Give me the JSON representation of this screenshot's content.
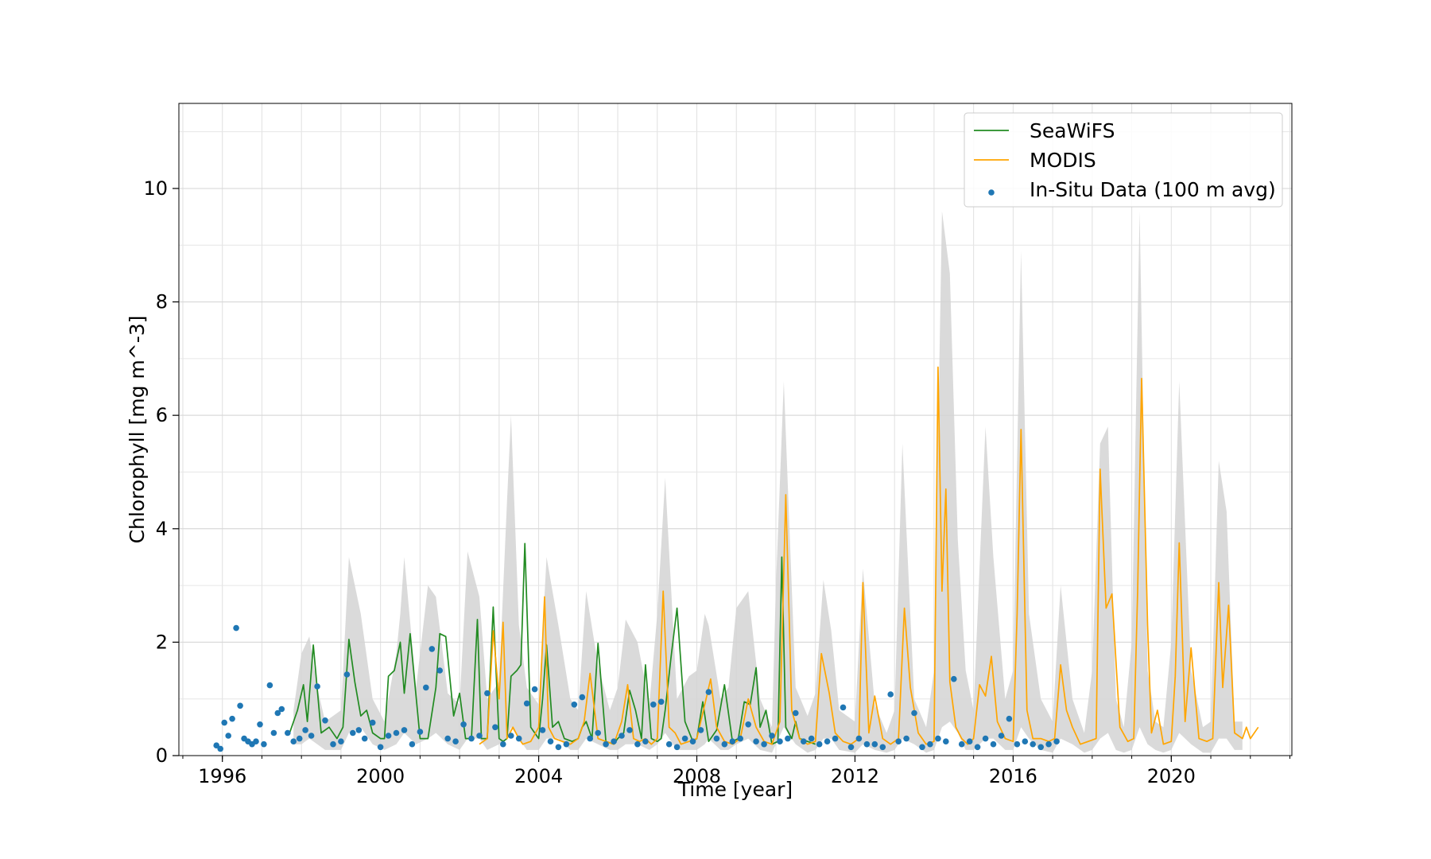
{
  "chart_data": {
    "type": "line",
    "title": "",
    "xlabel": "Time [year]",
    "ylabel": "Chlorophyll [mg m^-3]",
    "xlim": [
      1994.9,
      2023.05
    ],
    "ylim": [
      0,
      11.5
    ],
    "x_ticks": [
      1996,
      2000,
      2004,
      2008,
      2012,
      2016,
      2020
    ],
    "y_ticks": [
      0,
      2,
      4,
      6,
      8,
      10
    ],
    "x_tick_labels": [
      "1996",
      "2000",
      "2004",
      "2008",
      "2012",
      "2016",
      "2020"
    ],
    "y_tick_labels": [
      "0",
      "2",
      "4",
      "6",
      "8",
      "10"
    ],
    "grid": true,
    "legend": {
      "placement": "top-right"
    },
    "colors": {
      "seawifs": "#228b22",
      "modis": "#ffa500",
      "insitu": "#1f77b4",
      "band": "#d3d3d3"
    },
    "band": {
      "name": "",
      "x": [
        1997.8,
        1998.0,
        1998.2,
        1998.4,
        1998.6,
        1999.0,
        1999.2,
        1999.5,
        1999.8,
        2000.1,
        2000.4,
        2000.5,
        2000.6,
        2000.9,
        2001.2,
        2001.4,
        2001.7,
        2002.0,
        2002.2,
        2002.5,
        2002.7,
        2003.0,
        2003.2,
        2003.3,
        2003.5,
        2003.7,
        2004.0,
        2004.2,
        2004.5,
        2004.8,
        2005.0,
        2005.2,
        2005.5,
        2005.8,
        2006.0,
        2006.2,
        2006.5,
        2006.8,
        2007.0,
        2007.2,
        2007.5,
        2007.8,
        2008.0,
        2008.2,
        2008.3,
        2008.6,
        2008.8,
        2009.0,
        2009.3,
        2009.6,
        2009.9,
        2010.0,
        2010.2,
        2010.5,
        2010.8,
        2011.0,
        2011.2,
        2011.4,
        2011.6,
        2012.0,
        2012.2,
        2012.5,
        2012.8,
        2013.0,
        2013.2,
        2013.5,
        2013.8,
        2014.0,
        2014.2,
        2014.4,
        2014.6,
        2014.8,
        2015.0,
        2015.3,
        2015.5,
        2015.8,
        2016.0,
        2016.2,
        2016.4,
        2016.7,
        2017.0,
        2017.2,
        2017.5,
        2017.8,
        2018.0,
        2018.2,
        2018.4,
        2018.6,
        2018.8,
        2019.0,
        2019.2,
        2019.4,
        2019.6,
        2019.8,
        2020.0,
        2020.2,
        2020.5,
        2020.8,
        2021.0,
        2021.2,
        2021.4,
        2021.6,
        2021.8
      ],
      "upper": [
        0.8,
        1.8,
        2.1,
        1.2,
        0.6,
        0.8,
        3.5,
        2.5,
        1.0,
        0.6,
        1.8,
        2.5,
        3.5,
        1.2,
        3.0,
        2.8,
        1.1,
        0.9,
        3.6,
        2.8,
        1.0,
        1.3,
        4.5,
        6.0,
        2.3,
        1.2,
        0.9,
        3.5,
        2.3,
        1.0,
        0.8,
        2.9,
        1.6,
        0.8,
        1.2,
        2.4,
        2.0,
        0.9,
        2.5,
        4.9,
        1.0,
        1.4,
        1.5,
        2.5,
        2.3,
        1.0,
        1.2,
        2.6,
        2.9,
        1.0,
        0.5,
        3.0,
        6.6,
        1.2,
        0.7,
        1.1,
        3.1,
        2.2,
        0.8,
        0.6,
        3.3,
        0.9,
        0.4,
        0.8,
        5.5,
        1.0,
        0.5,
        1.5,
        9.6,
        8.5,
        3.8,
        1.5,
        0.8,
        5.8,
        3.5,
        1.0,
        1.5,
        8.9,
        2.5,
        1.0,
        0.6,
        3.0,
        1.0,
        0.4,
        1.5,
        5.5,
        5.8,
        1.0,
        0.5,
        2.0,
        9.6,
        1.5,
        0.6,
        0.5,
        2.0,
        6.6,
        1.5,
        0.5,
        0.6,
        5.2,
        4.3,
        0.6,
        0.6
      ],
      "lower": [
        0.2,
        0.2,
        0.3,
        0.2,
        0.1,
        0.1,
        0.4,
        0.5,
        0.2,
        0.1,
        0.2,
        0.3,
        0.4,
        0.2,
        0.3,
        0.4,
        0.2,
        0.1,
        0.3,
        0.3,
        0.1,
        0.2,
        0.3,
        0.5,
        0.3,
        0.1,
        0.1,
        0.3,
        0.3,
        0.1,
        0.1,
        0.3,
        0.2,
        0.1,
        0.1,
        0.2,
        0.2,
        0.1,
        0.2,
        0.4,
        0.1,
        0.1,
        0.1,
        0.2,
        0.3,
        0.1,
        0.1,
        0.2,
        0.3,
        0.1,
        0.05,
        0.2,
        0.5,
        0.2,
        0.05,
        0.1,
        0.3,
        0.3,
        0.1,
        0.05,
        0.2,
        0.1,
        0.05,
        0.1,
        0.3,
        0.2,
        0.05,
        0.1,
        0.5,
        0.6,
        0.4,
        0.1,
        0.1,
        0.3,
        0.3,
        0.1,
        0.1,
        0.5,
        0.3,
        0.1,
        0.05,
        0.3,
        0.2,
        0.05,
        0.1,
        0.3,
        0.4,
        0.1,
        0.05,
        0.1,
        0.5,
        0.2,
        0.1,
        0.05,
        0.1,
        0.4,
        0.2,
        0.05,
        0.05,
        0.3,
        0.3,
        0.1,
        0.1
      ]
    },
    "series": [
      {
        "name": "SeaWiFS",
        "type": "line",
        "x": [
          1997.7,
          1997.9,
          1998.05,
          1998.15,
          1998.3,
          1998.5,
          1998.7,
          1998.9,
          1999.05,
          1999.2,
          1999.35,
          1999.5,
          1999.65,
          1999.8,
          2000.0,
          2000.1,
          2000.2,
          2000.35,
          2000.5,
          2000.6,
          2000.75,
          2001.0,
          2001.1,
          2001.2,
          2001.4,
          2001.5,
          2001.65,
          2001.85,
          2002.0,
          2002.15,
          2002.3,
          2002.45,
          2002.55,
          2002.7,
          2002.85,
          2003.0,
          2003.1,
          2003.2,
          2003.3,
          2003.45,
          2003.55,
          2003.65,
          2003.8,
          2004.0,
          2004.1,
          2004.2,
          2004.35,
          2004.5,
          2004.65,
          2004.85,
          2005.0,
          2005.1,
          2005.2,
          2005.35,
          2005.5,
          2005.7,
          2005.9,
          2006.0,
          2006.15,
          2006.3,
          2006.45,
          2006.6,
          2006.7,
          2006.85,
          2007.0,
          2007.1,
          2007.2,
          2007.35,
          2007.5,
          2007.7,
          2007.9,
          2008.0,
          2008.15,
          2008.3,
          2008.5,
          2008.7,
          2008.9,
          2009.05,
          2009.2,
          2009.35,
          2009.5,
          2009.6,
          2009.75,
          2009.9,
          2010.05,
          2010.15,
          2010.25,
          2010.4,
          2010.5,
          2010.6,
          2010.8,
          2011.0
        ],
        "y": [
          0.4,
          0.8,
          1.25,
          0.6,
          1.95,
          0.4,
          0.5,
          0.3,
          0.5,
          2.05,
          1.3,
          0.7,
          0.8,
          0.4,
          0.3,
          0.3,
          1.4,
          1.5,
          2.0,
          1.1,
          2.15,
          0.3,
          0.3,
          0.3,
          1.2,
          2.15,
          2.1,
          0.7,
          1.1,
          0.3,
          0.3,
          2.4,
          0.3,
          0.3,
          2.62,
          0.3,
          0.25,
          0.3,
          1.4,
          1.5,
          1.6,
          3.74,
          0.5,
          0.3,
          1.0,
          1.95,
          0.5,
          0.6,
          0.3,
          0.25,
          0.3,
          0.5,
          0.6,
          0.3,
          1.98,
          0.25,
          0.2,
          0.3,
          0.4,
          1.15,
          0.8,
          0.3,
          1.6,
          0.3,
          0.25,
          0.3,
          0.8,
          1.75,
          2.6,
          0.6,
          0.25,
          0.3,
          0.95,
          0.25,
          0.45,
          1.25,
          0.25,
          0.3,
          0.95,
          0.9,
          1.55,
          0.5,
          0.8,
          0.2,
          0.25,
          3.5,
          0.5,
          0.3,
          0.6,
          0.3,
          0.25,
          0.2
        ]
      },
      {
        "name": "MODIS",
        "type": "line",
        "x": [
          2002.5,
          2002.7,
          2002.85,
          2003.0,
          2003.1,
          2003.2,
          2003.35,
          2003.5,
          2003.6,
          2003.8,
          2004.0,
          2004.15,
          2004.25,
          2004.4,
          2004.6,
          2004.8,
          2005.0,
          2005.15,
          2005.3,
          2005.5,
          2005.7,
          2005.9,
          2006.1,
          2006.25,
          2006.4,
          2006.55,
          2006.7,
          2006.85,
          2007.0,
          2007.15,
          2007.3,
          2007.45,
          2007.6,
          2007.8,
          2008.0,
          2008.2,
          2008.35,
          2008.5,
          2008.7,
          2008.9,
          2009.1,
          2009.3,
          2009.5,
          2009.7,
          2009.9,
          2010.1,
          2010.25,
          2010.4,
          2010.6,
          2010.8,
          2011.0,
          2011.15,
          2011.35,
          2011.5,
          2011.7,
          2011.9,
          2012.1,
          2012.2,
          2012.35,
          2012.5,
          2012.7,
          2012.9,
          2013.1,
          2013.25,
          2013.4,
          2013.6,
          2013.8,
          2014.0,
          2014.1,
          2014.2,
          2014.3,
          2014.4,
          2014.55,
          2014.7,
          2014.85,
          2015.0,
          2015.15,
          2015.3,
          2015.45,
          2015.6,
          2015.8,
          2016.0,
          2016.1,
          2016.2,
          2016.35,
          2016.5,
          2016.7,
          2016.9,
          2017.05,
          2017.2,
          2017.35,
          2017.5,
          2017.7,
          2017.9,
          2018.1,
          2018.2,
          2018.35,
          2018.5,
          2018.7,
          2018.9,
          2019.05,
          2019.15,
          2019.25,
          2019.4,
          2019.5,
          2019.65,
          2019.8,
          2020.0,
          2020.1,
          2020.2,
          2020.35,
          2020.5,
          2020.7,
          2020.9,
          2021.05,
          2021.2,
          2021.3,
          2021.45,
          2021.6,
          2021.8,
          2021.9,
          2022.0,
          2022.2
        ],
        "y": [
          0.2,
          0.3,
          2.2,
          1.0,
          2.35,
          0.3,
          0.5,
          0.3,
          0.2,
          0.25,
          0.5,
          2.8,
          0.5,
          0.3,
          0.25,
          0.2,
          0.3,
          0.6,
          1.45,
          0.3,
          0.25,
          0.2,
          0.6,
          1.25,
          0.3,
          0.25,
          0.3,
          0.2,
          0.3,
          2.9,
          0.5,
          0.4,
          0.2,
          0.25,
          0.3,
          0.9,
          1.35,
          0.5,
          0.25,
          0.2,
          0.3,
          1.0,
          0.5,
          0.25,
          0.2,
          0.6,
          4.6,
          0.8,
          0.3,
          0.2,
          0.25,
          1.8,
          1.1,
          0.4,
          0.25,
          0.2,
          0.3,
          3.05,
          0.4,
          1.05,
          0.3,
          0.2,
          0.3,
          2.6,
          1.2,
          0.4,
          0.2,
          0.25,
          6.85,
          2.9,
          4.7,
          1.3,
          0.5,
          0.3,
          0.2,
          0.3,
          1.25,
          1.05,
          1.75,
          0.6,
          0.3,
          0.25,
          2.5,
          5.75,
          0.8,
          0.3,
          0.3,
          0.25,
          0.3,
          1.6,
          0.8,
          0.5,
          0.2,
          0.25,
          0.3,
          5.05,
          2.6,
          2.85,
          0.5,
          0.25,
          0.3,
          2.9,
          6.65,
          2.3,
          0.4,
          0.8,
          0.2,
          0.25,
          1.4,
          3.75,
          0.6,
          1.9,
          0.3,
          0.25,
          0.3,
          3.05,
          1.2,
          2.65,
          0.4,
          0.3,
          0.5,
          0.3,
          0.5
        ]
      },
      {
        "name": "In-Situ Data (100 m avg)",
        "type": "scatter",
        "x": [
          1995.85,
          1995.95,
          1996.05,
          1996.15,
          1996.25,
          1996.35,
          1996.45,
          1996.55,
          1996.65,
          1996.75,
          1996.85,
          1996.95,
          1997.05,
          1997.2,
          1997.3,
          1997.4,
          1997.5,
          1997.65,
          1997.8,
          1997.95,
          1998.1,
          1998.25,
          1998.4,
          1998.6,
          1998.8,
          1999.0,
          1999.15,
          1999.3,
          1999.45,
          1999.6,
          1999.8,
          2000.0,
          2000.2,
          2000.4,
          2000.6,
          2000.8,
          2001.0,
          2001.15,
          2001.3,
          2001.5,
          2001.7,
          2001.9,
          2002.1,
          2002.3,
          2002.5,
          2002.7,
          2002.9,
          2003.1,
          2003.3,
          2003.5,
          2003.7,
          2003.9,
          2004.1,
          2004.3,
          2004.5,
          2004.7,
          2004.9,
          2005.1,
          2005.3,
          2005.5,
          2005.7,
          2005.9,
          2006.1,
          2006.3,
          2006.5,
          2006.7,
          2006.9,
          2007.1,
          2007.3,
          2007.5,
          2007.7,
          2007.9,
          2008.1,
          2008.3,
          2008.5,
          2008.7,
          2008.9,
          2009.1,
          2009.3,
          2009.5,
          2009.7,
          2009.9,
          2010.1,
          2010.3,
          2010.5,
          2010.7,
          2010.9,
          2011.1,
          2011.3,
          2011.5,
          2011.7,
          2011.9,
          2012.1,
          2012.3,
          2012.5,
          2012.7,
          2012.9,
          2013.1,
          2013.3,
          2013.5,
          2013.7,
          2013.9,
          2014.1,
          2014.3,
          2014.5,
          2014.7,
          2014.9,
          2015.1,
          2015.3,
          2015.5,
          2015.7,
          2015.9,
          2016.1,
          2016.3,
          2016.5,
          2016.7,
          2016.9,
          2017.1
        ],
        "y": [
          0.18,
          0.12,
          0.58,
          0.35,
          0.65,
          2.25,
          0.88,
          0.3,
          0.25,
          0.2,
          0.25,
          0.55,
          0.2,
          1.24,
          0.4,
          0.75,
          0.82,
          0.4,
          0.25,
          0.3,
          0.45,
          0.35,
          1.22,
          0.62,
          0.2,
          0.25,
          1.43,
          0.4,
          0.45,
          0.3,
          0.58,
          0.15,
          0.35,
          0.4,
          0.45,
          0.2,
          0.42,
          1.2,
          1.88,
          1.5,
          0.3,
          0.25,
          0.55,
          0.3,
          0.35,
          1.1,
          0.5,
          0.2,
          0.35,
          0.3,
          0.92,
          1.17,
          0.45,
          0.25,
          0.15,
          0.2,
          0.9,
          1.03,
          0.3,
          0.4,
          0.2,
          0.25,
          0.35,
          0.45,
          0.2,
          0.25,
          0.9,
          0.95,
          0.2,
          0.15,
          0.3,
          0.25,
          0.45,
          1.12,
          0.3,
          0.2,
          0.25,
          0.3,
          0.55,
          0.25,
          0.2,
          0.35,
          0.25,
          0.3,
          0.75,
          0.25,
          0.3,
          0.2,
          0.25,
          0.3,
          0.85,
          0.15,
          0.3,
          0.2,
          0.2,
          0.15,
          1.08,
          0.25,
          0.3,
          0.75,
          0.15,
          0.2,
          0.3,
          0.25,
          1.35,
          0.2,
          0.25,
          0.15,
          0.3,
          0.2,
          0.35,
          0.65,
          0.2,
          0.25,
          0.2,
          0.15,
          0.2,
          0.25
        ]
      }
    ]
  }
}
